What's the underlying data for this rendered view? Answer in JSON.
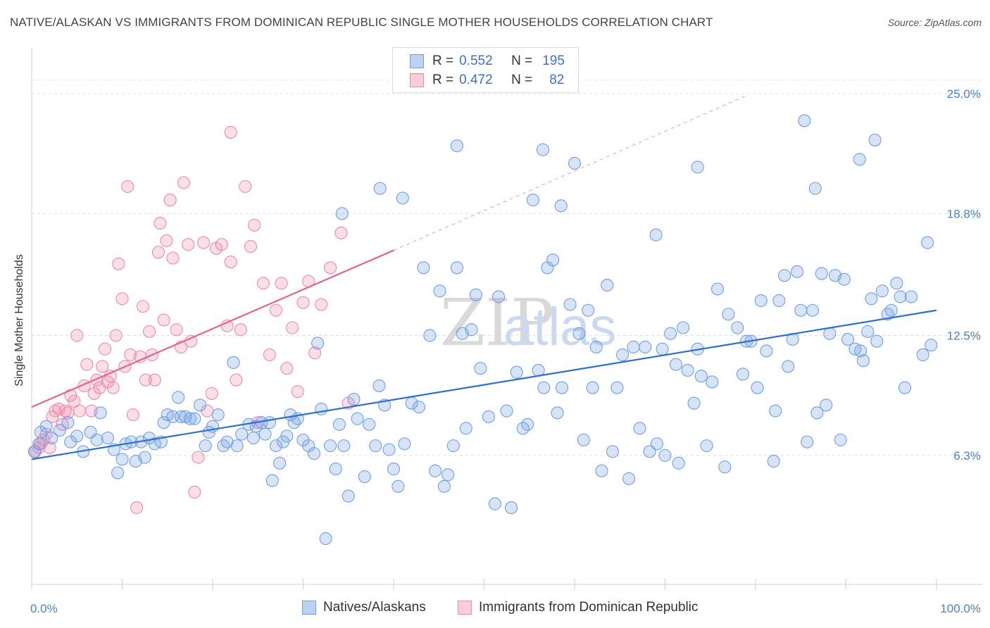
{
  "header": {
    "title": "NATIVE/ALASKAN VS IMMIGRANTS FROM DOMINICAN REPUBLIC SINGLE MOTHER HOUSEHOLDS CORRELATION CHART",
    "source": "Source: ZipAtlas.com"
  },
  "watermark": {
    "zip": "ZIP",
    "atlas": "atlas"
  },
  "legend": {
    "rows": [
      {
        "r_label": "R =",
        "r_value": "0.552",
        "n_label": "N =",
        "n_value": "195",
        "color": "#6f9ee6"
      },
      {
        "r_label": "R =",
        "r_value": "0.472",
        "n_label": "N =",
        "n_value": "82",
        "color": "#f08aaa"
      }
    ]
  },
  "bottom_legend": {
    "series1": "Natives/Alaskans",
    "series2": "Immigrants from Dominican Republic"
  },
  "chart_data": {
    "type": "scatter",
    "title": "NATIVE/ALASKAN VS IMMIGRANTS FROM DOMINICAN REPUBLIC SINGLE MOTHER HOUSEHOLDS CORRELATION CHART",
    "ylabel": "Single Mother Households",
    "xlabel": "",
    "xlim": [
      0,
      100
    ],
    "ylim": [
      0,
      27
    ],
    "x_tick_labels": [
      {
        "value": 0,
        "label": "0.0%"
      },
      {
        "value": 100,
        "label": "100.0%"
      }
    ],
    "y_tick_labels": [
      {
        "value": 6.3,
        "label": "6.3%"
      },
      {
        "value": 12.5,
        "label": "12.5%"
      },
      {
        "value": 18.8,
        "label": "18.8%"
      },
      {
        "value": 25.0,
        "label": "25.0%"
      }
    ],
    "grid": "horizontal dashed",
    "colors": {
      "blue": "#6f9ee6",
      "blue_line": "#2f6fd1",
      "pink": "#f08aaa",
      "pink_line": "#e8628e",
      "tick": "#4a7fd6"
    },
    "series": [
      {
        "name": "Natives/Alaskans",
        "color": "#6f9ee6",
        "r": 0.552,
        "n": 195,
        "trend": {
          "x": [
            0,
            100
          ],
          "y": [
            6.1,
            13.8
          ]
        },
        "points": [
          [
            0.3,
            6.5
          ],
          [
            0.8,
            6.9
          ],
          [
            1.0,
            7.5
          ],
          [
            1.6,
            7.8
          ],
          [
            2.2,
            7.2
          ],
          [
            3.1,
            7.6
          ],
          [
            4.0,
            8.0
          ],
          [
            4.3,
            7.0
          ],
          [
            5.0,
            7.3
          ],
          [
            5.7,
            6.5
          ],
          [
            6.5,
            7.5
          ],
          [
            7.2,
            7.1
          ],
          [
            7.6,
            8.5
          ],
          [
            8.4,
            7.2
          ],
          [
            9.1,
            6.6
          ],
          [
            9.5,
            5.4
          ],
          [
            10.0,
            6.1
          ],
          [
            10.4,
            6.9
          ],
          [
            11.0,
            7.0
          ],
          [
            11.5,
            6.0
          ],
          [
            12.1,
            7.0
          ],
          [
            12.5,
            6.2
          ],
          [
            13.0,
            7.2
          ],
          [
            13.6,
            6.9
          ],
          [
            14.3,
            7.0
          ],
          [
            14.6,
            8.0
          ],
          [
            15.0,
            8.4
          ],
          [
            15.6,
            8.3
          ],
          [
            16.2,
            9.3
          ],
          [
            16.5,
            8.3
          ],
          [
            17.0,
            8.3
          ],
          [
            17.5,
            8.2
          ],
          [
            18.0,
            8.2
          ],
          [
            18.6,
            8.9
          ],
          [
            19.2,
            6.8
          ],
          [
            19.6,
            7.5
          ],
          [
            20.0,
            7.8
          ],
          [
            20.6,
            8.4
          ],
          [
            21.2,
            6.8
          ],
          [
            21.6,
            7.0
          ],
          [
            22.3,
            11.1
          ],
          [
            22.7,
            6.8
          ],
          [
            23.2,
            7.4
          ],
          [
            24.0,
            7.9
          ],
          [
            24.5,
            7.2
          ],
          [
            24.8,
            7.8
          ],
          [
            25.4,
            8.0
          ],
          [
            25.8,
            7.4
          ],
          [
            26.3,
            8.0
          ],
          [
            26.6,
            5.0
          ],
          [
            27.0,
            6.8
          ],
          [
            27.4,
            5.9
          ],
          [
            27.8,
            7.0
          ],
          [
            28.2,
            7.3
          ],
          [
            28.6,
            8.4
          ],
          [
            29.0,
            8.0
          ],
          [
            29.4,
            8.2
          ],
          [
            30.0,
            7.1
          ],
          [
            30.6,
            6.8
          ],
          [
            31.2,
            6.4
          ],
          [
            31.6,
            12.1
          ],
          [
            32.0,
            8.7
          ],
          [
            32.5,
            2.0
          ],
          [
            33.0,
            6.8
          ],
          [
            33.6,
            5.6
          ],
          [
            34.0,
            7.9
          ],
          [
            34.5,
            6.8
          ],
          [
            35.0,
            4.2
          ],
          [
            35.6,
            9.2
          ],
          [
            36.0,
            8.2
          ],
          [
            36.8,
            5.2
          ],
          [
            37.3,
            7.9
          ],
          [
            38.0,
            6.8
          ],
          [
            38.4,
            9.9
          ],
          [
            39.0,
            8.9
          ],
          [
            39.5,
            6.6
          ],
          [
            40.0,
            5.6
          ],
          [
            40.5,
            4.7
          ],
          [
            41.2,
            6.9
          ],
          [
            42.0,
            9.0
          ],
          [
            42.8,
            8.8
          ],
          [
            43.3,
            16.0
          ],
          [
            44.0,
            12.5
          ],
          [
            44.6,
            5.5
          ],
          [
            45.1,
            14.8
          ],
          [
            45.6,
            4.7
          ],
          [
            46.0,
            5.3
          ],
          [
            46.6,
            6.8
          ],
          [
            47.0,
            16.0
          ],
          [
            47.6,
            12.6
          ],
          [
            48.0,
            7.7
          ],
          [
            48.6,
            12.8
          ],
          [
            49.1,
            14.6
          ],
          [
            49.6,
            10.8
          ],
          [
            50.5,
            8.3
          ],
          [
            51.2,
            3.8
          ],
          [
            51.6,
            14.5
          ],
          [
            52.5,
            8.6
          ],
          [
            53.0,
            3.6
          ],
          [
            53.6,
            10.6
          ],
          [
            54.3,
            7.7
          ],
          [
            54.8,
            7.9
          ],
          [
            55.4,
            19.5
          ],
          [
            56.0,
            10.7
          ],
          [
            56.6,
            9.8
          ],
          [
            57.0,
            16.0
          ],
          [
            57.6,
            16.4
          ],
          [
            58.1,
            8.5
          ],
          [
            58.6,
            9.8
          ],
          [
            59.5,
            14.1
          ],
          [
            60.5,
            12.6
          ],
          [
            61.0,
            7.1
          ],
          [
            61.5,
            13.8
          ],
          [
            62.0,
            9.8
          ],
          [
            62.4,
            11.9
          ],
          [
            63.0,
            5.5
          ],
          [
            63.6,
            15.1
          ],
          [
            64.2,
            6.5
          ],
          [
            64.7,
            9.8
          ],
          [
            65.3,
            11.5
          ],
          [
            66.0,
            5.1
          ],
          [
            66.5,
            11.9
          ],
          [
            67.2,
            7.7
          ],
          [
            67.8,
            11.9
          ],
          [
            68.3,
            6.5
          ],
          [
            69.1,
            6.9
          ],
          [
            69.7,
            11.8
          ],
          [
            70.0,
            6.3
          ],
          [
            70.6,
            12.6
          ],
          [
            71.2,
            11.0
          ],
          [
            71.5,
            5.9
          ],
          [
            72.0,
            12.9
          ],
          [
            72.5,
            10.7
          ],
          [
            73.2,
            9.0
          ],
          [
            73.6,
            11.8
          ],
          [
            74.0,
            10.4
          ],
          [
            74.6,
            6.8
          ],
          [
            75.2,
            10.1
          ],
          [
            75.8,
            14.9
          ],
          [
            76.6,
            5.7
          ],
          [
            77.0,
            13.6
          ],
          [
            78.0,
            12.9
          ],
          [
            78.6,
            10.5
          ],
          [
            79.0,
            12.2
          ],
          [
            79.5,
            12.2
          ],
          [
            80.2,
            9.8
          ],
          [
            80.6,
            14.3
          ],
          [
            81.2,
            11.7
          ],
          [
            82.0,
            6.0
          ],
          [
            82.2,
            8.6
          ],
          [
            82.6,
            14.3
          ],
          [
            83.2,
            15.6
          ],
          [
            83.6,
            10.9
          ],
          [
            84.1,
            12.3
          ],
          [
            84.6,
            15.8
          ],
          [
            85.0,
            13.8
          ],
          [
            85.7,
            7.0
          ],
          [
            86.3,
            13.8
          ],
          [
            86.8,
            8.5
          ],
          [
            87.3,
            15.7
          ],
          [
            87.8,
            8.9
          ],
          [
            88.2,
            12.6
          ],
          [
            88.8,
            15.6
          ],
          [
            89.4,
            7.1
          ],
          [
            89.8,
            15.4
          ],
          [
            90.2,
            12.3
          ],
          [
            91.0,
            11.8
          ],
          [
            91.6,
            11.7
          ],
          [
            91.9,
            11.2
          ],
          [
            92.4,
            12.7
          ],
          [
            92.8,
            14.4
          ],
          [
            93.4,
            12.2
          ],
          [
            94.0,
            14.8
          ],
          [
            94.6,
            13.6
          ],
          [
            95.0,
            13.8
          ],
          [
            95.6,
            15.2
          ],
          [
            96.0,
            14.5
          ],
          [
            96.5,
            9.8
          ],
          [
            97.2,
            14.5
          ],
          [
            98.5,
            11.5
          ],
          [
            99.0,
            17.3
          ],
          [
            99.4,
            12.0
          ],
          [
            34.3,
            18.8
          ],
          [
            38.5,
            20.1
          ],
          [
            41.0,
            19.6
          ],
          [
            47.0,
            22.3
          ],
          [
            56.5,
            22.1
          ],
          [
            58.5,
            19.2
          ],
          [
            60.0,
            21.4
          ],
          [
            69.0,
            17.7
          ],
          [
            73.6,
            21.2
          ],
          [
            85.4,
            23.6
          ],
          [
            86.6,
            20.1
          ],
          [
            91.5,
            21.6
          ],
          [
            93.2,
            22.6
          ]
        ]
      },
      {
        "name": "Immigrants from Dominican Republic",
        "color": "#f08aaa",
        "r": 0.472,
        "n": 82,
        "trend": {
          "x": [
            0,
            40
          ],
          "y": [
            8.8,
            16.9
          ]
        },
        "trend_dashed": {
          "x": [
            40,
            79
          ],
          "y": [
            16.9,
            24.9
          ]
        },
        "points": [
          [
            0.4,
            6.5
          ],
          [
            0.8,
            6.7
          ],
          [
            1.0,
            6.9
          ],
          [
            1.3,
            7.1
          ],
          [
            1.6,
            7.4
          ],
          [
            2.0,
            6.7
          ],
          [
            2.3,
            8.3
          ],
          [
            2.6,
            8.6
          ],
          [
            3.0,
            8.7
          ],
          [
            3.4,
            7.9
          ],
          [
            3.7,
            8.6
          ],
          [
            4.0,
            8.5
          ],
          [
            4.3,
            9.4
          ],
          [
            4.7,
            9.1
          ],
          [
            5.0,
            12.5
          ],
          [
            5.3,
            8.6
          ],
          [
            5.8,
            9.9
          ],
          [
            6.1,
            11.0
          ],
          [
            6.6,
            8.6
          ],
          [
            6.9,
            9.5
          ],
          [
            7.2,
            10.2
          ],
          [
            7.5,
            9.8
          ],
          [
            7.8,
            10.9
          ],
          [
            8.1,
            11.8
          ],
          [
            8.4,
            10.1
          ],
          [
            8.7,
            10.4
          ],
          [
            9.0,
            9.8
          ],
          [
            9.3,
            12.5
          ],
          [
            9.6,
            16.2
          ],
          [
            10.0,
            14.4
          ],
          [
            10.3,
            10.9
          ],
          [
            10.6,
            20.2
          ],
          [
            10.9,
            11.5
          ],
          [
            11.2,
            8.4
          ],
          [
            11.6,
            3.6
          ],
          [
            12.0,
            11.4
          ],
          [
            12.3,
            14.0
          ],
          [
            12.6,
            10.2
          ],
          [
            13.0,
            12.7
          ],
          [
            13.3,
            11.5
          ],
          [
            13.6,
            10.2
          ],
          [
            14.0,
            16.8
          ],
          [
            14.2,
            18.3
          ],
          [
            14.6,
            13.3
          ],
          [
            14.9,
            17.4
          ],
          [
            15.3,
            19.5
          ],
          [
            15.6,
            16.5
          ],
          [
            16.0,
            12.8
          ],
          [
            16.5,
            11.9
          ],
          [
            16.8,
            20.4
          ],
          [
            17.3,
            17.2
          ],
          [
            17.6,
            12.2
          ],
          [
            18.0,
            4.4
          ],
          [
            18.4,
            6.2
          ],
          [
            19.0,
            17.3
          ],
          [
            19.4,
            8.6
          ],
          [
            19.9,
            9.5
          ],
          [
            20.4,
            17.0
          ],
          [
            21.0,
            17.2
          ],
          [
            21.6,
            13.0
          ],
          [
            22.0,
            16.3
          ],
          [
            22.6,
            10.2
          ],
          [
            23.1,
            12.8
          ],
          [
            23.6,
            20.2
          ],
          [
            24.2,
            17.1
          ],
          [
            24.6,
            18.2
          ],
          [
            25.0,
            8.0
          ],
          [
            25.6,
            15.2
          ],
          [
            26.3,
            11.5
          ],
          [
            27.0,
            13.8
          ],
          [
            27.6,
            15.2
          ],
          [
            28.2,
            10.8
          ],
          [
            28.8,
            12.9
          ],
          [
            29.4,
            9.6
          ],
          [
            30.0,
            14.2
          ],
          [
            30.6,
            15.3
          ],
          [
            31.3,
            11.6
          ],
          [
            32.0,
            14.1
          ],
          [
            33.0,
            16.0
          ],
          [
            34.2,
            17.8
          ],
          [
            35.0,
            9.0
          ],
          [
            22.0,
            23.0
          ]
        ]
      }
    ]
  }
}
